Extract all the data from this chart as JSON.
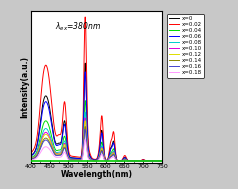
{
  "xlabel": "Wavelength(nm)",
  "ylabel": "Intensity(a.u.)",
  "xlim": [
    400,
    750
  ],
  "background_color": "#ffffff",
  "outer_bg": "#c8c8c8",
  "legend_labels": [
    "x=0",
    "x=0.02",
    "x=0.04",
    "x=0.06",
    "x=0.08",
    "x=0.10",
    "x=0.12",
    "x=0.14",
    "x=0.16",
    "x=0.18"
  ],
  "colors": [
    "#000000",
    "#ff0000",
    "#00dd00",
    "#0000ff",
    "#00cccc",
    "#dd00dd",
    "#dddd00",
    "#888800",
    "#4444cc",
    "#ff99ff"
  ],
  "series_amplitudes": [
    0.68,
    1.0,
    0.42,
    0.62,
    0.34,
    0.3,
    0.28,
    0.24,
    0.22,
    0.15
  ]
}
